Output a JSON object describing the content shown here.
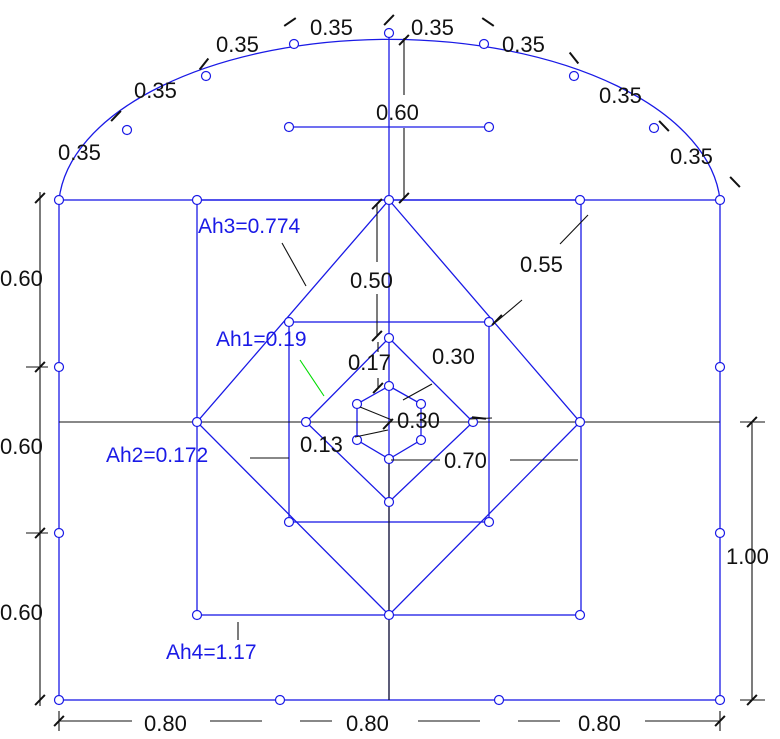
{
  "colors": {
    "structure": "#1a1ae6",
    "dimension": "#111111",
    "leader_green": "#00dd00",
    "background": "#ffffff"
  },
  "arc_dims": [
    "0.35",
    "0.35",
    "0.35",
    "0.35",
    "0.35",
    "0.35",
    "0.35",
    "0.35"
  ],
  "dims": {
    "crown_gap": "0.60",
    "left_top": "0.60",
    "left_mid": "0.60",
    "left_bottom": "0.60",
    "right_height": "1.00",
    "bottom_left": "0.80",
    "bottom_mid": "0.80",
    "bottom_right": "0.80",
    "outer_diamond_to_square": "0.50",
    "diag": "0.55",
    "inner_box": "0.30",
    "inner_gap": "0.17",
    "center_a": "0.30",
    "center_b": "0.13",
    "half_span": "0.70"
  },
  "annotations": {
    "ah1": "Ah1=0.19",
    "ah2": "Ah2=0.172",
    "ah3": "Ah3=0.774",
    "ah4": "Ah4=1.17"
  }
}
